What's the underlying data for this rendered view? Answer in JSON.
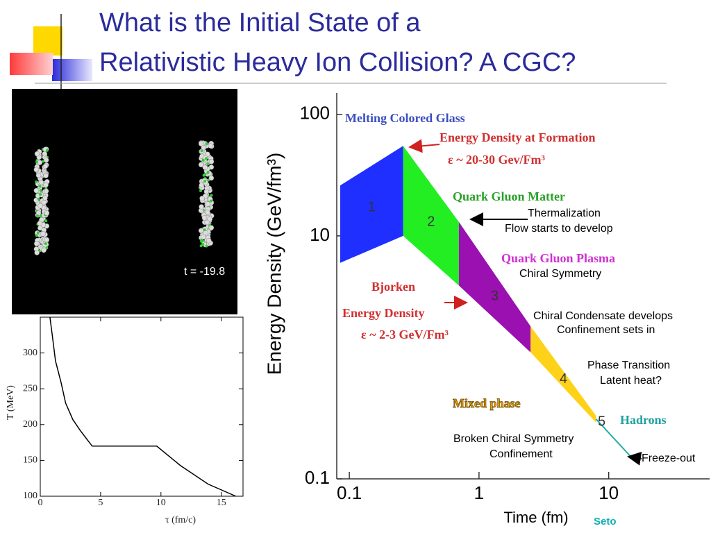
{
  "title_lines": [
    "What is the Initial State of a",
    "Relativistic Heavy Ion Collision? A CGC?"
  ],
  "simulation": {
    "label": "t = -19.8"
  },
  "credit": "Seto",
  "chart_data": [
    {
      "type": "line",
      "xlabel": "τ (fm/c)",
      "ylabel": "T (MeV)",
      "x": [
        0.8,
        0.98,
        1.26,
        1.72,
        2.1,
        2.7,
        3.3,
        4.3,
        9.65,
        11.6,
        13.9,
        16.2
      ],
      "values": [
        350,
        327,
        289,
        259,
        230,
        207,
        192,
        170,
        170,
        143,
        117,
        100
      ],
      "color": "#000000",
      "xlim": [
        0,
        16.8
      ],
      "ylim": [
        100,
        350
      ],
      "xticks": [
        0,
        5,
        10,
        15
      ],
      "yticks": [
        100,
        150,
        200,
        250,
        300
      ]
    },
    {
      "type": "area",
      "xlabel": "Time (fm)",
      "ylabel": "Energy Density (GeV/fm³)",
      "log_x": true,
      "log_y": true,
      "xlim": [
        0.08,
        60
      ],
      "ylim": [
        0.1,
        150
      ],
      "xticks": [
        0.1,
        1,
        10
      ],
      "yticks": [
        0.1,
        10,
        100
      ],
      "regions": [
        {
          "label": "1",
          "color": "#1f2fff",
          "x": [
            0.085,
            0.26,
            0.26,
            0.085
          ],
          "y": [
            26,
            55,
            10,
            6
          ]
        },
        {
          "label": "2",
          "color": "#22ee22",
          "x": [
            0.26,
            0.7,
            0.7,
            0.26
          ],
          "y": [
            55,
            13,
            3.9,
            10
          ]
        },
        {
          "label": "3",
          "color": "#9a10b0",
          "x": [
            0.7,
            2.5,
            2.5,
            0.7
          ],
          "y": [
            13,
            1.8,
            1.1,
            3.9
          ]
        },
        {
          "label": "4",
          "color": "#ffd21a",
          "x": [
            2.5,
            8,
            8,
            2.5
          ],
          "y": [
            1.8,
            0.33,
            0.29,
            1.1
          ]
        },
        {
          "label": "5",
          "color": "#20b0a0",
          "x": [
            8,
            15
          ],
          "y": [
            0.31,
            0.15
          ]
        }
      ],
      "annotations": [
        {
          "text": "Melting Colored Glass",
          "color": "#3c4fc0"
        },
        {
          "text": "Energy Density at Formation",
          "color": "#d03030"
        },
        {
          "text": "ε ~ 20-30 Gev/Fm³",
          "color": "#d03030"
        },
        {
          "text": "Quark Gluon Matter",
          "color": "#2aa02a"
        },
        {
          "text": "Thermalization",
          "color": "#000000"
        },
        {
          "text": "Flow starts to develop",
          "color": "#000000"
        },
        {
          "text": "Quark Gluon Plasma",
          "color": "#d030d0"
        },
        {
          "text": "Chiral Symmetry",
          "color": "#000000"
        },
        {
          "text": "Bjorken",
          "color": "#d03030"
        },
        {
          "text": "Energy Density",
          "color": "#d03030"
        },
        {
          "text": "ε ~ 2-3 GeV/Fm³",
          "color": "#d03030"
        },
        {
          "text": "Chiral Condensate develops",
          "color": "#000000"
        },
        {
          "text": "Confinement sets in",
          "color": "#000000"
        },
        {
          "text": "Phase Transition",
          "color": "#000000"
        },
        {
          "text": "Latent heat?",
          "color": "#000000"
        },
        {
          "text": "Mixed phase",
          "color": "#f0a000"
        },
        {
          "text": "Hadrons",
          "color": "#20a0a0"
        },
        {
          "text": "Broken Chiral Symmetry",
          "color": "#000000"
        },
        {
          "text": "Confinement",
          "color": "#000000"
        },
        {
          "text": "Freeze-out",
          "color": "#000000"
        }
      ]
    }
  ]
}
